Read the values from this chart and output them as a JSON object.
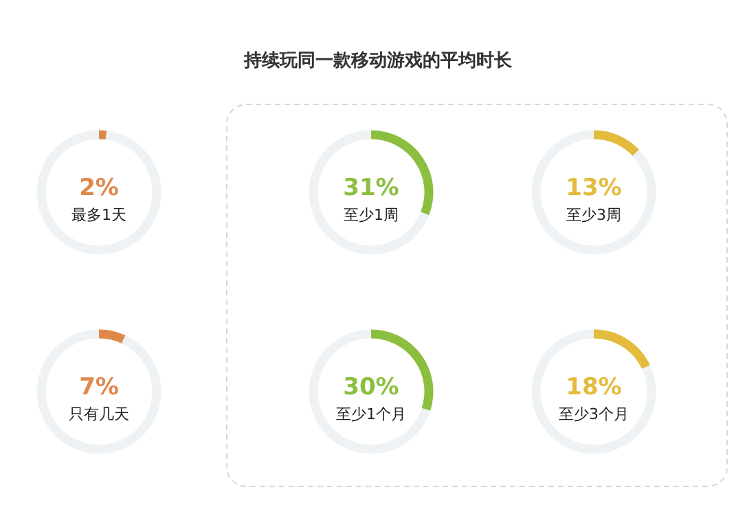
{
  "chart_data": [
    {
      "type": "other",
      "title": "持续玩同一款移动游戏的平均时长"
    },
    {
      "type": "donut",
      "categories": [
        "最多1天",
        null
      ],
      "values": [
        2,
        98
      ],
      "colors": [
        "#e0884c",
        "#eef2f4"
      ],
      "value_labels": [
        "2%",
        null
      ]
    },
    {
      "type": "donut",
      "categories": [
        "至少1周",
        null
      ],
      "values": [
        31,
        69
      ],
      "colors": [
        "#8cbf3f",
        "#eef2f4"
      ],
      "value_labels": [
        "31%",
        null
      ]
    },
    {
      "type": "donut",
      "categories": [
        "至少3周",
        null
      ],
      "values": [
        13,
        87
      ],
      "colors": [
        "#e3bb3d",
        "#eef2f4"
      ],
      "value_labels": [
        "13%",
        null
      ]
    },
    {
      "type": "donut",
      "categories": [
        "只有几天",
        null
      ],
      "values": [
        7,
        93
      ],
      "colors": [
        "#e0884c",
        "#eef2f4"
      ],
      "value_labels": [
        "7%",
        null
      ]
    },
    {
      "type": "donut",
      "categories": [
        "至少1个月",
        null
      ],
      "values": [
        30,
        70
      ],
      "colors": [
        "#8cbf3f",
        "#eef2f4"
      ],
      "value_labels": [
        "30%",
        null
      ]
    },
    {
      "type": "donut",
      "categories": [
        "至少3个月",
        null
      ],
      "values": [
        18,
        82
      ],
      "colors": [
        "#e3bb3d",
        "#eef2f4"
      ],
      "value_labels": [
        "18%",
        null
      ]
    }
  ]
}
